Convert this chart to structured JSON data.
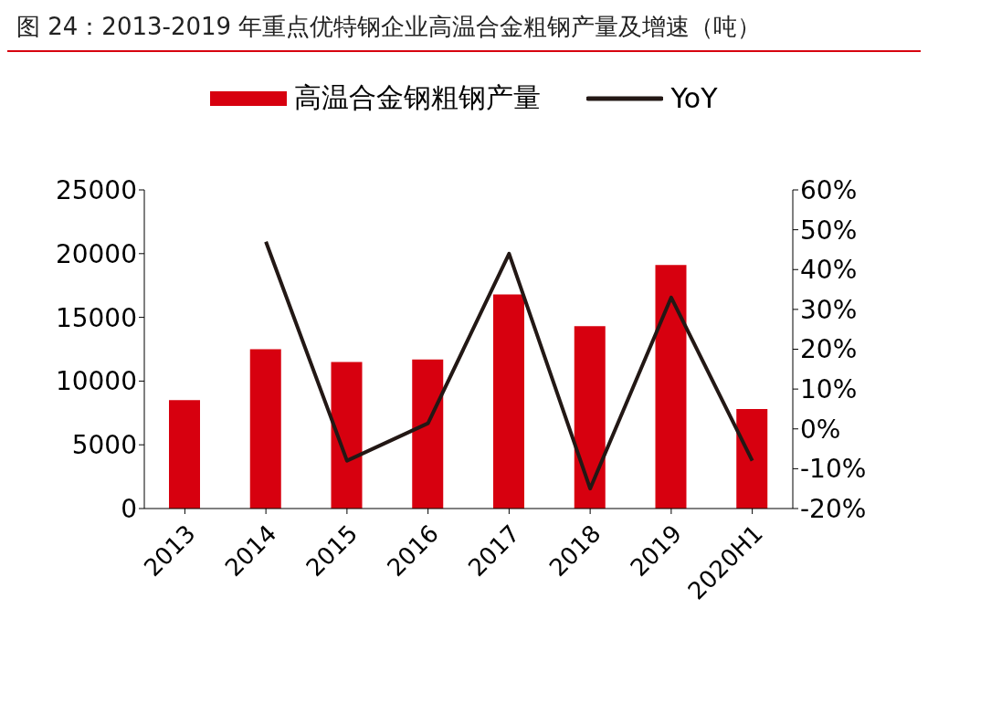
{
  "chart_data": {
    "type": "bar",
    "title": "图 24：2013-2019 年重点优特钢企业高温合金粗钢产量及增速（吨）",
    "categories": [
      "2013",
      "2014",
      "2015",
      "2016",
      "2017",
      "2018",
      "2019",
      "2020H1"
    ],
    "series": [
      {
        "name": "高温合金钢粗钢产量",
        "color": "#d7000f",
        "values": [
          8500,
          12500,
          11500,
          11700,
          16800,
          14300,
          19100,
          7800
        ]
      },
      {
        "name": "YoY",
        "type": "line",
        "axis": "y2",
        "color": "#231815",
        "values": [
          null,
          47,
          -8,
          1.4,
          44,
          -15,
          33,
          -8
        ]
      }
    ],
    "ylim": [
      0,
      25000
    ],
    "yticks": [
      0,
      5000,
      10000,
      15000,
      20000,
      25000
    ],
    "y2lim": [
      -20,
      60
    ],
    "y2ticks": [
      {
        "value": -20,
        "label": "-20%"
      },
      {
        "value": -10,
        "label": "-10%"
      },
      {
        "value": 0,
        "label": "0%"
      },
      {
        "value": 10,
        "label": "10%"
      },
      {
        "value": 20,
        "label": "20%"
      },
      {
        "value": 30,
        "label": "30%"
      },
      {
        "value": 40,
        "label": "40%"
      },
      {
        "value": 50,
        "label": "50%"
      },
      {
        "value": 60,
        "label": "60%"
      }
    ],
    "legend": "top",
    "grid": false,
    "line_style": "solid"
  }
}
